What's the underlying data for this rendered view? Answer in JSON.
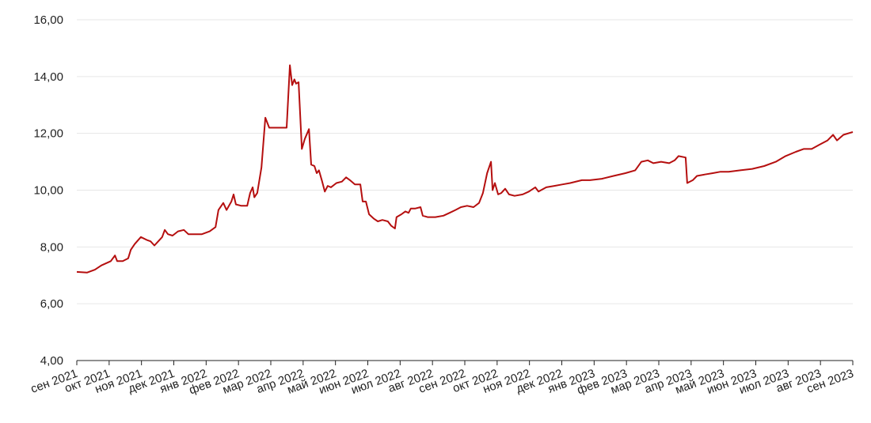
{
  "chart_data": {
    "type": "line",
    "color": "#b50f0f",
    "grid": true,
    "ylim": [
      4,
      16
    ],
    "yticks": [
      {
        "value": 4,
        "label": "4,00"
      },
      {
        "value": 6,
        "label": "6,00"
      },
      {
        "value": 8,
        "label": "8,00"
      },
      {
        "value": 10,
        "label": "10,00"
      },
      {
        "value": 12,
        "label": "12,00"
      },
      {
        "value": 14,
        "label": "14,00"
      },
      {
        "value": 16,
        "label": "16,00"
      }
    ],
    "xlim": [
      0,
      24
    ],
    "xticks": [
      {
        "value": 0,
        "label": "сен 2021"
      },
      {
        "value": 1,
        "label": "окт 2021"
      },
      {
        "value": 2,
        "label": "ноя 2021"
      },
      {
        "value": 3,
        "label": "дек 2021"
      },
      {
        "value": 4,
        "label": "янв 2022"
      },
      {
        "value": 5,
        "label": "фев 2022"
      },
      {
        "value": 6,
        "label": "мар 2022"
      },
      {
        "value": 7,
        "label": "апр 2022"
      },
      {
        "value": 8,
        "label": "май 2022"
      },
      {
        "value": 9,
        "label": "июн 2022"
      },
      {
        "value": 10,
        "label": "июл 2022"
      },
      {
        "value": 11,
        "label": "авг 2022"
      },
      {
        "value": 12,
        "label": "сен 2022"
      },
      {
        "value": 13,
        "label": "окт 2022"
      },
      {
        "value": 14,
        "label": "ноя 2022"
      },
      {
        "value": 15,
        "label": "дек 2022"
      },
      {
        "value": 16,
        "label": "янв 2023"
      },
      {
        "value": 17,
        "label": "фев 2023"
      },
      {
        "value": 18,
        "label": "мар 2023"
      },
      {
        "value": 19,
        "label": "апр 2023"
      },
      {
        "value": 20,
        "label": "май 2023"
      },
      {
        "value": 21,
        "label": "июн 2023"
      },
      {
        "value": 22,
        "label": "июл 2023"
      },
      {
        "value": 23,
        "label": "авг 2023"
      },
      {
        "value": 24,
        "label": "сен 2023"
      }
    ],
    "x": [
      0,
      0.32,
      0.56,
      0.76,
      1.05,
      1.18,
      1.25,
      1.42,
      1.59,
      1.67,
      1.79,
      1.98,
      2.16,
      2.28,
      2.4,
      2.52,
      2.64,
      2.72,
      2.82,
      2.96,
      3.13,
      3.31,
      3.45,
      3.62,
      3.87,
      4.11,
      4.29,
      4.38,
      4.53,
      4.63,
      4.78,
      4.85,
      4.92,
      5.09,
      5.27,
      5.36,
      5.44,
      5.49,
      5.58,
      5.71,
      5.83,
      5.95,
      6.2,
      6.49,
      6.59,
      6.66,
      6.73,
      6.78,
      6.86,
      6.96,
      7.05,
      7.18,
      7.25,
      7.35,
      7.42,
      7.49,
      7.59,
      7.67,
      7.76,
      7.86,
      8.03,
      8.2,
      8.33,
      8.45,
      8.6,
      8.77,
      8.84,
      8.94,
      9.04,
      9.18,
      9.31,
      9.45,
      9.62,
      9.72,
      9.84,
      9.89,
      10.04,
      10.16,
      10.26,
      10.33,
      10.46,
      10.63,
      10.7,
      10.85,
      11.09,
      11.34,
      11.53,
      11.71,
      11.88,
      12.07,
      12.27,
      12.44,
      12.56,
      12.69,
      12.81,
      12.86,
      12.93,
      13.03,
      13.13,
      13.25,
      13.37,
      13.54,
      13.79,
      13.98,
      14.18,
      14.28,
      14.52,
      14.77,
      15.01,
      15.26,
      15.62,
      15.87,
      16.24,
      16.6,
      16.97,
      17.27,
      17.46,
      17.66,
      17.83,
      18.07,
      18.32,
      18.49,
      18.61,
      18.83,
      18.88,
      19.05,
      19.18,
      19.42,
      19.67,
      19.91,
      20.16,
      20.52,
      20.89,
      21.26,
      21.62,
      21.92,
      22.24,
      22.48,
      22.73,
      22.97,
      23.22,
      23.39,
      23.51,
      23.71,
      24.0
    ],
    "values": [
      7.12,
      7.1,
      7.2,
      7.35,
      7.5,
      7.7,
      7.5,
      7.5,
      7.6,
      7.9,
      8.1,
      8.35,
      8.25,
      8.2,
      8.05,
      8.2,
      8.35,
      8.6,
      8.45,
      8.4,
      8.55,
      8.6,
      8.45,
      8.45,
      8.45,
      8.55,
      8.7,
      9.3,
      9.55,
      9.3,
      9.6,
      9.85,
      9.5,
      9.45,
      9.45,
      9.9,
      10.1,
      9.75,
      9.9,
      10.8,
      12.55,
      12.2,
      12.2,
      12.2,
      14.4,
      13.7,
      13.9,
      13.75,
      13.8,
      11.45,
      11.8,
      12.15,
      10.9,
      10.85,
      10.6,
      10.7,
      10.3,
      9.95,
      10.15,
      10.1,
      10.25,
      10.3,
      10.45,
      10.35,
      10.2,
      10.2,
      9.6,
      9.6,
      9.15,
      9.0,
      8.9,
      8.95,
      8.9,
      8.75,
      8.65,
      9.05,
      9.15,
      9.25,
      9.2,
      9.35,
      9.35,
      9.4,
      9.1,
      9.05,
      9.05,
      9.1,
      9.2,
      9.3,
      9.4,
      9.45,
      9.4,
      9.55,
      9.9,
      10.6,
      11.0,
      10.0,
      10.25,
      9.85,
      9.9,
      10.05,
      9.85,
      9.8,
      9.85,
      9.95,
      10.1,
      9.95,
      10.1,
      10.15,
      10.2,
      10.25,
      10.35,
      10.35,
      10.4,
      10.5,
      10.6,
      10.7,
      11.0,
      11.05,
      10.95,
      11.0,
      10.95,
      11.05,
      11.2,
      11.15,
      10.25,
      10.35,
      10.5,
      10.55,
      10.6,
      10.65,
      10.65,
      10.7,
      10.75,
      10.85,
      11.0,
      11.2,
      11.35,
      11.45,
      11.45,
      11.6,
      11.75,
      11.95,
      11.75,
      11.95,
      12.05
    ]
  }
}
